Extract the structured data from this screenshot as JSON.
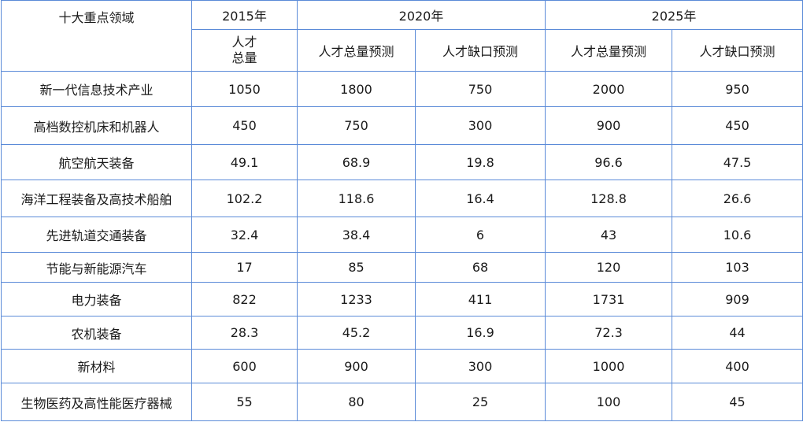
{
  "table": {
    "header": {
      "field": "十大重点领域",
      "years": [
        "2015年",
        "2020年",
        "2025年"
      ],
      "sub": [
        "人才总量",
        "人才总量预测",
        "人才缺口预测",
        "人才总量预测",
        "人才缺口预测"
      ]
    },
    "rows": [
      [
        "新一代信息技术产业",
        1050,
        1800,
        750,
        2000,
        950
      ],
      [
        "高档数控机床和机器人",
        450,
        750,
        300,
        900,
        450
      ],
      [
        "航空航天装备",
        49.1,
        68.9,
        19.8,
        96.6,
        47.5
      ],
      [
        "海洋工程装备及高技术船舶",
        102.2,
        118.6,
        16.4,
        128.8,
        26.6
      ],
      [
        "先进轨道交通装备",
        32.4,
        38.4,
        6,
        43,
        10.6
      ],
      [
        "节能与新能源汽车",
        17,
        85,
        68,
        120,
        103
      ],
      [
        "电力装备",
        822,
        1233,
        411,
        1731,
        909
      ],
      [
        "农机装备",
        28.3,
        45.2,
        16.9,
        72.3,
        44
      ],
      [
        "新材料",
        600,
        900,
        300,
        1000,
        400
      ],
      [
        "生物医药及高性能医疗器械",
        55,
        80,
        25,
        100,
        45
      ]
    ]
  }
}
